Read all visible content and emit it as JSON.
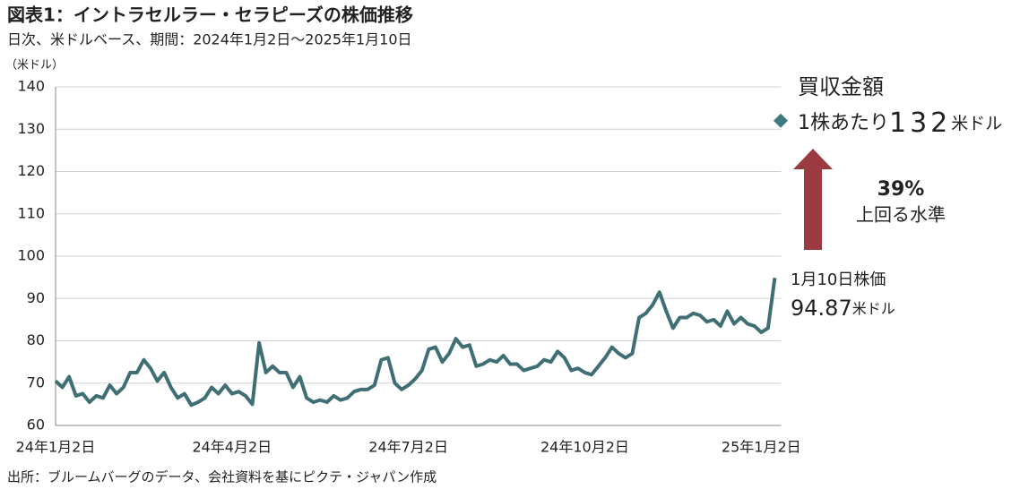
{
  "title": "図表1：イントラセルラー・セラピーズの株価推移",
  "subtitle": "日次、米ドルベース、期間：2024年1月2日～2025年1月10日",
  "source": "出所：ブルームバーグのデータ、会社資料を基にピクテ・ジャパン作成",
  "chart_data": {
    "type": "line",
    "y_unit_label": "（米ドル）",
    "categories": [
      "24年1月2日",
      null,
      null,
      null,
      null,
      null,
      null,
      null,
      null,
      null,
      null,
      null,
      null,
      null,
      null,
      null,
      null,
      null,
      null,
      null,
      null,
      null,
      null,
      null,
      null,
      null,
      "24年4月2日",
      null,
      null,
      null,
      null,
      null,
      null,
      null,
      null,
      null,
      null,
      null,
      null,
      null,
      null,
      null,
      null,
      null,
      null,
      null,
      null,
      null,
      null,
      null,
      null,
      null,
      "24年7月2日",
      null,
      null,
      null,
      null,
      null,
      null,
      null,
      null,
      null,
      null,
      null,
      null,
      null,
      null,
      null,
      null,
      null,
      null,
      null,
      null,
      null,
      null,
      null,
      null,
      null,
      "24年10月2日",
      null,
      null,
      null,
      null,
      null,
      null,
      null,
      null,
      null,
      null,
      null,
      null,
      null,
      null,
      null,
      null,
      null,
      null,
      null,
      null,
      null,
      null,
      null,
      null,
      null,
      "25年1月2日",
      null,
      null
    ],
    "series": [
      {
        "name": "株価",
        "color": "#3f6f75",
        "values": [
          70.5,
          69,
          71.5,
          67,
          67.5,
          65.5,
          67,
          66.5,
          69.5,
          67.5,
          69,
          72.5,
          72.5,
          75.5,
          73.5,
          70.5,
          72.5,
          69,
          66.5,
          67.5,
          64.8,
          65.5,
          66.5,
          69,
          67.5,
          69.5,
          67.5,
          68,
          67,
          65,
          79.5,
          72.5,
          74,
          72.5,
          72.5,
          69,
          71.5,
          66.5,
          65.5,
          66,
          65.5,
          67,
          66,
          66.5,
          68,
          68.5,
          68.5,
          69.5,
          75.5,
          76,
          70,
          68.5,
          69.5,
          71,
          73,
          78,
          78.5,
          75,
          77,
          80.5,
          78.5,
          79,
          74,
          74.5,
          75.5,
          75,
          76.5,
          74.5,
          74.5,
          73,
          73.5,
          74,
          75.5,
          75,
          77.5,
          76,
          73,
          73.5,
          72.5,
          72,
          74,
          76,
          78.5,
          77,
          76,
          77,
          85.5,
          86.5,
          88.5,
          91.5,
          87,
          83,
          85.5,
          85.5,
          86.5,
          86,
          84.5,
          85,
          83.5,
          87,
          84,
          85.5,
          84,
          83.5,
          82,
          83,
          94.87
        ]
      }
    ],
    "ylim": [
      60,
      140
    ],
    "yticks": [
      60,
      70,
      80,
      90,
      100,
      110,
      120,
      130,
      140
    ],
    "grid": true,
    "annotations": {
      "deal_heading": "買収金額",
      "deal_prefix": "1株あたり",
      "deal_price": 132,
      "deal_unit": "米ドル",
      "deal_marker_color": "#3f7a80",
      "arrow_color": "#9b3a40",
      "premium": "39%",
      "premium_text": "上回る水準",
      "last_label": "1月10日株価",
      "last_unit": "米ドル"
    }
  }
}
